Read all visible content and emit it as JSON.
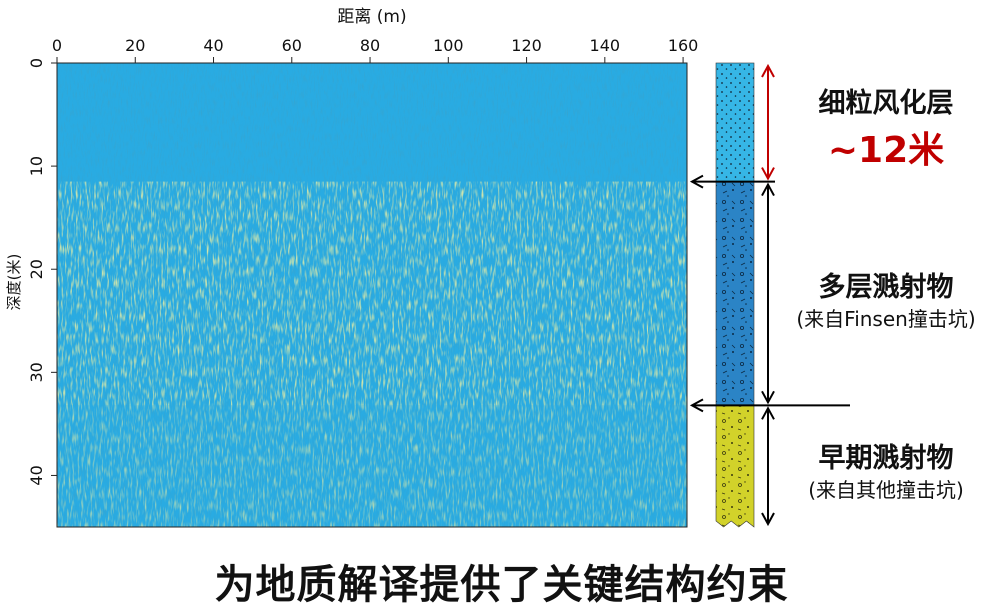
{
  "figure": {
    "x_axis_label": "距离 (m)",
    "y_axis_label": "深度(米)",
    "x_ticks": [
      0,
      20,
      40,
      60,
      80,
      100,
      120,
      140,
      160
    ],
    "y_ticks": [
      0,
      10,
      20,
      30,
      40
    ],
    "x_range": [
      0,
      161
    ],
    "y_range": [
      0,
      45
    ],
    "layers": [
      {
        "title": "细粒风化层",
        "note": "~12米",
        "top_m": 0,
        "bottom_m": 11.5,
        "fill": "#36b6e6",
        "arrow_color": "#c00000",
        "note_color": "#c00000"
      },
      {
        "title": "多层溅射物",
        "subtitle": "(来自Finsen撞击坑)",
        "top_m": 11.5,
        "bottom_m": 33.2,
        "fill": "#2b84c6",
        "arrow_color": "#000000"
      },
      {
        "title": "早期溅射物",
        "subtitle": "(来自其他撞击坑)",
        "top_m": 33.2,
        "bottom_m": 45,
        "fill": "#d2d22a",
        "arrow_color": "#000000"
      }
    ],
    "radar_colors": {
      "background": "#29abe2",
      "reflector": "#e6d24a"
    }
  },
  "caption": "为地质解译提供了关键结构约束"
}
